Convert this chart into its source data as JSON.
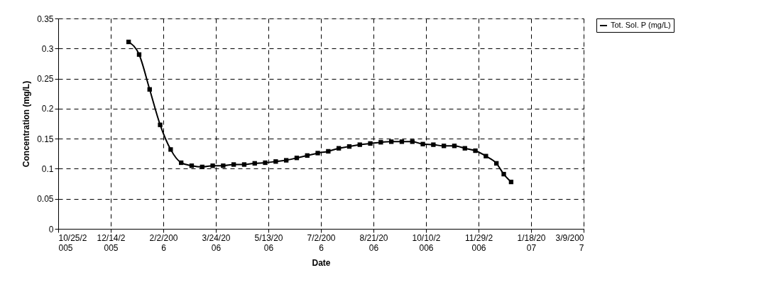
{
  "chart_data": {
    "type": "line",
    "xlabel": "Date",
    "ylabel": "Concentration (mg/L)",
    "x": [
      "2005-12-31",
      "2006-01-10",
      "2006-01-20",
      "2006-01-30",
      "2006-02-09",
      "2006-02-19",
      "2006-03-01",
      "2006-03-11",
      "2006-03-21",
      "2006-03-31",
      "2006-04-10",
      "2006-04-20",
      "2006-04-30",
      "2006-05-10",
      "2006-05-20",
      "2006-05-30",
      "2006-06-09",
      "2006-06-19",
      "2006-06-29",
      "2006-07-09",
      "2006-07-19",
      "2006-07-29",
      "2006-08-08",
      "2006-08-18",
      "2006-08-28",
      "2006-09-07",
      "2006-09-17",
      "2006-09-27",
      "2006-10-07",
      "2006-10-17",
      "2006-10-27",
      "2006-11-06",
      "2006-11-16",
      "2006-11-26",
      "2006-12-06",
      "2006-12-16",
      "2006-12-23",
      "2006-12-30"
    ],
    "series": [
      {
        "name": "Tot. Sol. P (mg/L)",
        "color": "#000000",
        "values": [
          0.311,
          0.29,
          0.232,
          0.173,
          0.132,
          0.11,
          0.105,
          0.103,
          0.105,
          0.105,
          0.107,
          0.107,
          0.109,
          0.11,
          0.112,
          0.114,
          0.118,
          0.122,
          0.126,
          0.129,
          0.134,
          0.137,
          0.14,
          0.142,
          0.144,
          0.145,
          0.145,
          0.145,
          0.141,
          0.14,
          0.138,
          0.138,
          0.134,
          0.13,
          0.121,
          0.109,
          0.091,
          0.078
        ]
      }
    ],
    "xlim": [
      "2005-10-25",
      "2007-03-09"
    ],
    "xticks": [
      {
        "value": "2005-10-25",
        "label": "10/25/2005"
      },
      {
        "value": "2005-12-14",
        "label": "12/14/2005"
      },
      {
        "value": "2006-02-02",
        "label": "2/2/2006"
      },
      {
        "value": "2006-03-24",
        "label": "3/24/2006"
      },
      {
        "value": "2006-05-13",
        "label": "5/13/2006"
      },
      {
        "value": "2006-07-02",
        "label": "7/2/2006"
      },
      {
        "value": "2006-08-21",
        "label": "8/21/2006"
      },
      {
        "value": "2006-10-10",
        "label": "10/10/2006"
      },
      {
        "value": "2006-11-29",
        "label": "11/29/2006"
      },
      {
        "value": "2007-01-18",
        "label": "1/18/2007"
      },
      {
        "value": "2007-03-09",
        "label": "3/9/2007"
      }
    ],
    "ylim": [
      0,
      0.35
    ],
    "yticks": [
      0,
      0.05,
      0.1,
      0.15,
      0.2,
      0.25,
      0.3,
      0.35
    ],
    "grid": true,
    "legend": "right",
    "marker": "square",
    "line_style": "solid"
  }
}
